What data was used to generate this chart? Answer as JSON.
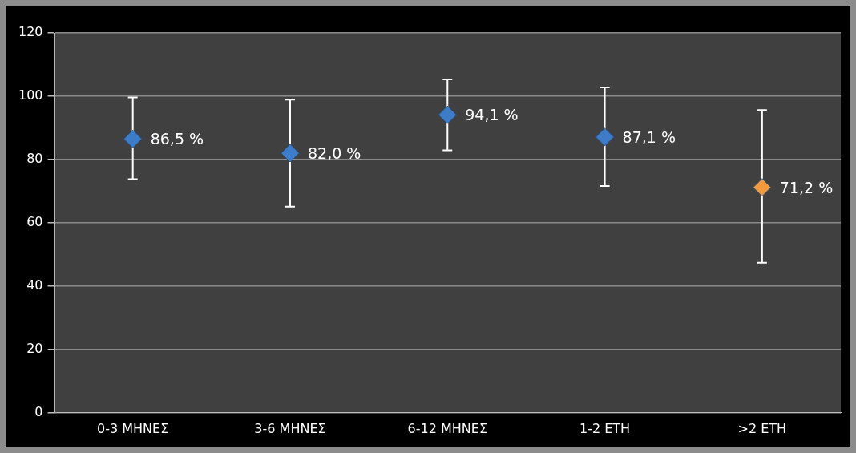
{
  "chart_data": {
    "type": "scatter",
    "categories": [
      "0-3 ΜΗΝΕΣ",
      "3-6 ΜΗΝΕΣ",
      "6-12 ΜΗΝΕΣ",
      "1-2 ΕΤΗ",
      ">2 ΕΤΗ"
    ],
    "values": [
      86.5,
      82.0,
      94.1,
      87.1,
      71.2
    ],
    "colors": [
      "#3d7cc9",
      "#3d7cc9",
      "#3d7cc9",
      "#3d7cc9",
      "#f59a3c"
    ],
    "errors": [
      [
        73.8,
        99.6
      ],
      [
        65.1,
        98.9
      ],
      [
        82.9,
        105.3
      ],
      [
        71.6,
        102.8
      ],
      [
        47.4,
        95.6
      ]
    ],
    "value_labels": [
      "86,5 %",
      "82,0 %",
      "94,1 %",
      "87,1 %",
      "71,2 %"
    ],
    "ylim": [
      0,
      120
    ],
    "yticks": [
      0,
      20,
      40,
      60,
      80,
      100,
      120
    ],
    "grid": "y",
    "legend": false,
    "marker": "diamond"
  }
}
